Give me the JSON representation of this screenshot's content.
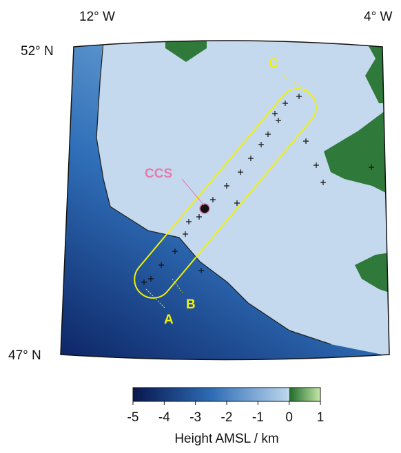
{
  "map": {
    "lon_labels": [
      "12° W",
      "4° W"
    ],
    "lat_labels": [
      "52° N",
      "47° N"
    ],
    "annotations": {
      "a": "A",
      "b": "B",
      "c": "C",
      "ccs": "CCS"
    }
  },
  "colorbar": {
    "lim": [
      -5,
      1
    ],
    "ticks": [
      -5,
      -4,
      -3,
      -2,
      -1,
      0,
      1
    ],
    "label": "Height AMSL / km"
  }
}
